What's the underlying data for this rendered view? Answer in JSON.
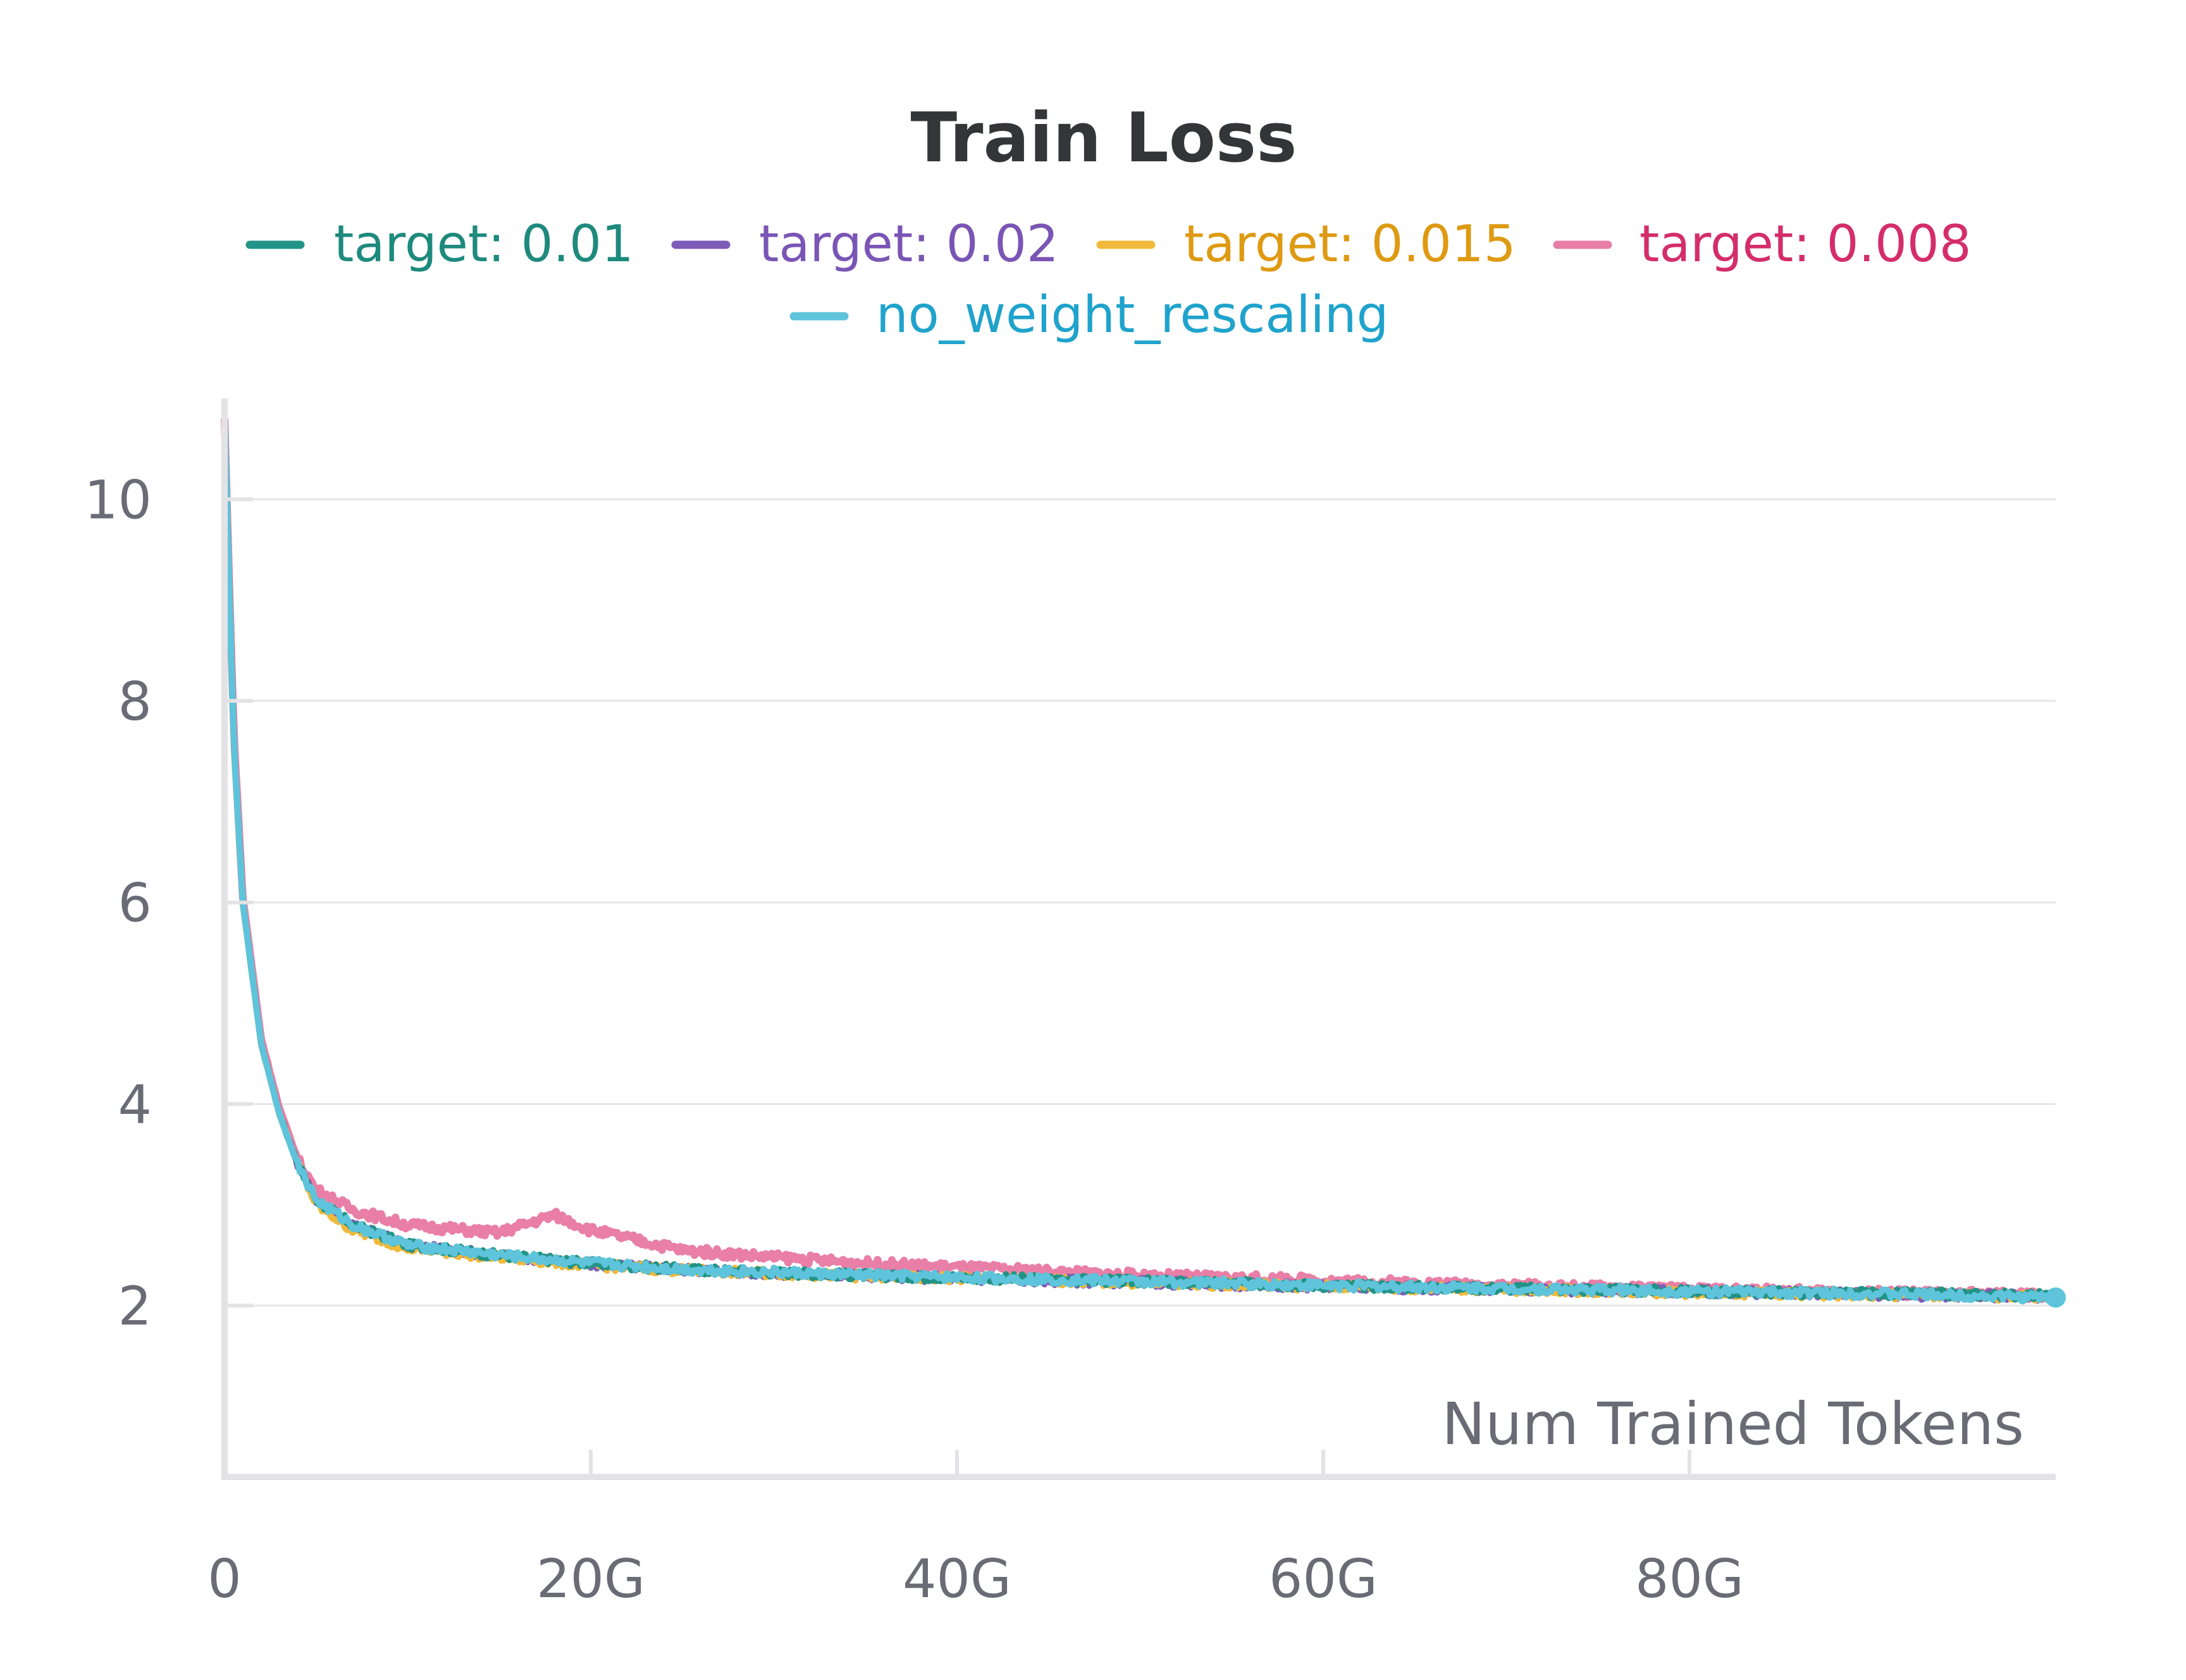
{
  "chart_data": {
    "type": "line",
    "title": "Train Loss",
    "xlabel": "Num Trained Tokens",
    "ylabel": "",
    "xlim": [
      0,
      100000000000
    ],
    "ylim": [
      0.3,
      11
    ],
    "x_ticks": [
      {
        "value": 0,
        "label": "0"
      },
      {
        "value": 20000000000,
        "label": "20G"
      },
      {
        "value": 40000000000,
        "label": "40G"
      },
      {
        "value": 60000000000,
        "label": "60G"
      },
      {
        "value": 80000000000,
        "label": "80G"
      }
    ],
    "y_ticks": [
      {
        "value": 2,
        "label": "2"
      },
      {
        "value": 4,
        "label": "4"
      },
      {
        "value": 6,
        "label": "6"
      },
      {
        "value": 8,
        "label": "8"
      },
      {
        "value": 10,
        "label": "10"
      }
    ],
    "grid": true,
    "legend_position": "top-center",
    "series": [
      {
        "name": "target: 0.01",
        "color": "#229487",
        "text_color": "#1e8a7e",
        "x": [
          0,
          500000000,
          1000000000,
          2000000000,
          3000000000,
          4000000000,
          5000000000,
          7000000000,
          10000000000,
          15000000000,
          20000000000,
          25000000000,
          30000000000,
          35000000000,
          40000000000,
          50000000000,
          60000000000,
          70000000000,
          80000000000,
          90000000000,
          100000000000
        ],
        "y": [
          10.8,
          7.6,
          6.0,
          4.6,
          3.9,
          3.4,
          3.05,
          2.8,
          2.6,
          2.5,
          2.42,
          2.36,
          2.33,
          2.3,
          2.28,
          2.24,
          2.2,
          2.17,
          2.14,
          2.12,
          2.1
        ]
      },
      {
        "name": "target: 0.02",
        "color": "#7e5bb8",
        "text_color": "#7a55b5",
        "x": [
          0,
          500000000,
          1000000000,
          2000000000,
          3000000000,
          4000000000,
          5000000000,
          7000000000,
          10000000000,
          15000000000,
          20000000000,
          25000000000,
          30000000000,
          35000000000,
          40000000000,
          50000000000,
          60000000000,
          70000000000,
          80000000000,
          90000000000,
          100000000000
        ],
        "y": [
          10.8,
          7.6,
          6.0,
          4.6,
          3.9,
          3.4,
          3.05,
          2.8,
          2.6,
          2.5,
          2.41,
          2.36,
          2.32,
          2.3,
          2.27,
          2.23,
          2.19,
          2.16,
          2.14,
          2.11,
          2.09
        ]
      },
      {
        "name": "target: 0.015",
        "color": "#f0b93a",
        "text_color": "#de9a12",
        "x": [
          0,
          500000000,
          1000000000,
          2000000000,
          3000000000,
          4000000000,
          5000000000,
          7000000000,
          10000000000,
          15000000000,
          20000000000,
          25000000000,
          30000000000,
          35000000000,
          40000000000,
          50000000000,
          60000000000,
          70000000000,
          80000000000,
          90000000000,
          100000000000
        ],
        "y": [
          10.8,
          7.6,
          6.0,
          4.6,
          3.9,
          3.4,
          3.0,
          2.75,
          2.57,
          2.48,
          2.4,
          2.35,
          2.32,
          2.29,
          2.27,
          2.23,
          2.19,
          2.16,
          2.13,
          2.11,
          2.09
        ]
      },
      {
        "name": "target: 0.008",
        "color": "#e97fa6",
        "text_color": "#d42d6a",
        "x": [
          0,
          500000000,
          1000000000,
          2000000000,
          3000000000,
          4000000000,
          5000000000,
          7000000000,
          10000000000,
          15000000000,
          18000000000,
          20000000000,
          25000000000,
          30000000000,
          35000000000,
          40000000000,
          50000000000,
          60000000000,
          70000000000,
          80000000000,
          90000000000,
          100000000000
        ],
        "y": [
          10.8,
          7.7,
          6.05,
          4.65,
          3.95,
          3.45,
          3.15,
          2.95,
          2.8,
          2.72,
          2.9,
          2.75,
          2.55,
          2.48,
          2.42,
          2.38,
          2.3,
          2.25,
          2.2,
          2.16,
          2.13,
          2.1
        ]
      },
      {
        "name": "no_weight_rescaling",
        "color": "#5ec4db",
        "text_color": "#1fa3cc",
        "x": [
          0,
          500000000,
          1000000000,
          2000000000,
          3000000000,
          4000000000,
          5000000000,
          7000000000,
          10000000000,
          15000000000,
          20000000000,
          25000000000,
          30000000000,
          35000000000,
          40000000000,
          50000000000,
          60000000000,
          70000000000,
          80000000000,
          90000000000,
          100000000000
        ],
        "y": [
          10.8,
          7.6,
          6.0,
          4.6,
          3.9,
          3.4,
          3.05,
          2.8,
          2.6,
          2.5,
          2.42,
          2.36,
          2.33,
          2.3,
          2.28,
          2.24,
          2.2,
          2.17,
          2.14,
          2.12,
          2.08
        ]
      }
    ]
  }
}
